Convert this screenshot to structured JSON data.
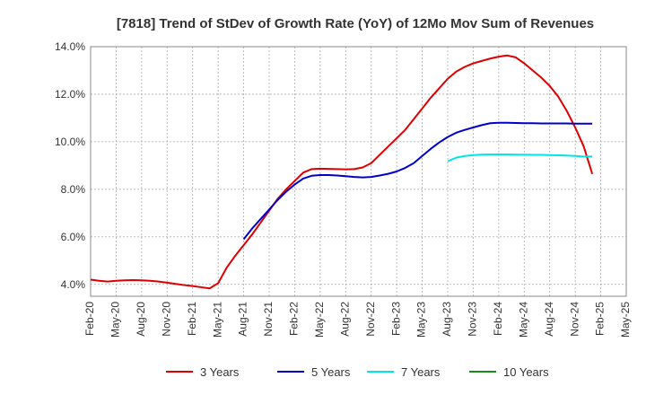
{
  "chart_data": {
    "type": "line",
    "title": "[7818]  Trend of StDev of Growth Rate (YoY) of 12Mo Mov Sum of Revenues",
    "xlabel": "",
    "ylabel": "",
    "ylim": [
      3.5,
      14.0
    ],
    "yticks": [
      4.0,
      6.0,
      8.0,
      10.0,
      12.0,
      14.0
    ],
    "ytick_labels": [
      "4.0%",
      "6.0%",
      "8.0%",
      "10.0%",
      "12.0%",
      "14.0%"
    ],
    "xticks": [
      "Feb-20",
      "May-20",
      "Aug-20",
      "Nov-20",
      "Feb-21",
      "May-21",
      "Aug-21",
      "Nov-21",
      "Feb-22",
      "May-22",
      "Aug-22",
      "Nov-22",
      "Feb-23",
      "May-23",
      "Aug-23",
      "Nov-23",
      "Feb-24",
      "May-24",
      "Aug-24",
      "Nov-24",
      "Feb-25",
      "May-25"
    ],
    "grid": true,
    "legend_position": "bottom",
    "series": [
      {
        "name": "3 Years",
        "color": "#dd0000",
        "start_index": 0,
        "values": [
          4.2,
          4.15,
          4.12,
          4.15,
          4.17,
          4.18,
          4.17,
          4.15,
          4.12,
          4.07,
          4.02,
          3.97,
          3.93,
          3.88,
          3.83,
          4.05,
          4.7,
          5.2,
          5.65,
          6.1,
          6.6,
          7.1,
          7.6,
          8.0,
          8.35,
          8.7,
          8.85,
          8.87,
          8.86,
          8.85,
          8.84,
          8.85,
          8.92,
          9.1,
          9.45,
          9.8,
          10.15,
          10.5,
          10.95,
          11.4,
          11.85,
          12.25,
          12.65,
          12.95,
          13.15,
          13.3,
          13.4,
          13.5,
          13.58,
          13.63,
          13.55,
          13.3,
          13.0,
          12.7,
          12.35,
          11.9,
          11.3,
          10.6,
          9.8,
          8.65
        ]
      },
      {
        "name": "5 Years",
        "color": "#0000cc",
        "start_index": 18,
        "values": [
          5.9,
          6.35,
          6.75,
          7.15,
          7.55,
          7.9,
          8.2,
          8.45,
          8.57,
          8.6,
          8.6,
          8.58,
          8.55,
          8.52,
          8.5,
          8.52,
          8.58,
          8.65,
          8.75,
          8.9,
          9.1,
          9.4,
          9.7,
          9.97,
          10.2,
          10.38,
          10.5,
          10.6,
          10.7,
          10.78,
          10.8,
          10.8,
          10.79,
          10.78,
          10.78,
          10.77,
          10.77,
          10.77,
          10.77,
          10.76,
          10.76,
          10.76
        ]
      },
      {
        "name": "7 Years",
        "color": "#00e5e5",
        "start_index": 42,
        "values": [
          9.18,
          9.33,
          9.4,
          9.44,
          9.46,
          9.47,
          9.47,
          9.47,
          9.46,
          9.46,
          9.45,
          9.45,
          9.44,
          9.43,
          9.42,
          9.4,
          9.38,
          9.38
        ]
      },
      {
        "name": "10 Years",
        "color": "#1a8a1a",
        "start_index": 0,
        "values": []
      }
    ]
  }
}
